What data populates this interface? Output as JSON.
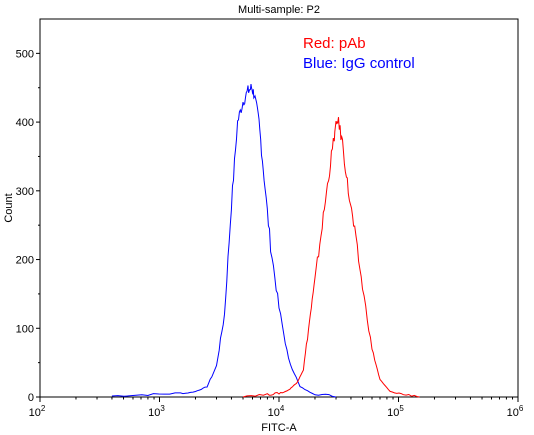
{
  "chart_data": {
    "type": "line",
    "title": "Multi-sample: P2",
    "xlabel": "FITC-A",
    "ylabel": "Count",
    "xscale": "log",
    "xlim": [
      100,
      1000000
    ],
    "ylim": [
      0,
      550
    ],
    "x_ticks": [
      {
        "value": 100,
        "base": "10",
        "exp": "2"
      },
      {
        "value": 1000,
        "base": "10",
        "exp": "3"
      },
      {
        "value": 10000,
        "base": "10",
        "exp": "4"
      },
      {
        "value": 100000,
        "base": "10",
        "exp": "5"
      },
      {
        "value": 1000000,
        "base": "10",
        "exp": "6"
      }
    ],
    "y_ticks": [
      0,
      100,
      200,
      300,
      400,
      500
    ],
    "grid": false,
    "legend_position": "top-right",
    "legend": [
      {
        "label": "Red: pAb",
        "color": "#ff0000"
      },
      {
        "label": "Blue: IgG control",
        "color": "#0000ff"
      }
    ],
    "series": [
      {
        "color": "#0000ff",
        "x": [
          400,
          800,
          1500,
          2000,
          2500,
          3000,
          3500,
          4000,
          4500,
          5000,
          5500,
          5900,
          6200,
          6800,
          7500,
          8500,
          10000,
          12000,
          15000,
          20000,
          30000
        ],
        "y": [
          0,
          2,
          4,
          8,
          15,
          45,
          120,
          280,
          400,
          430,
          445,
          450,
          440,
          400,
          320,
          220,
          130,
          55,
          15,
          3,
          0
        ]
      },
      {
        "color": "#ff0000",
        "x": [
          5000,
          8000,
          10000,
          12000,
          14000,
          16000,
          18000,
          20000,
          23000,
          26000,
          29000,
          31000,
          34000,
          38000,
          43000,
          50000,
          60000,
          70000,
          85000,
          110000,
          150000
        ],
        "y": [
          0,
          2,
          4,
          10,
          20,
          40,
          110,
          170,
          250,
          320,
          380,
          405,
          370,
          300,
          240,
          160,
          70,
          25,
          8,
          2,
          0
        ]
      }
    ]
  }
}
